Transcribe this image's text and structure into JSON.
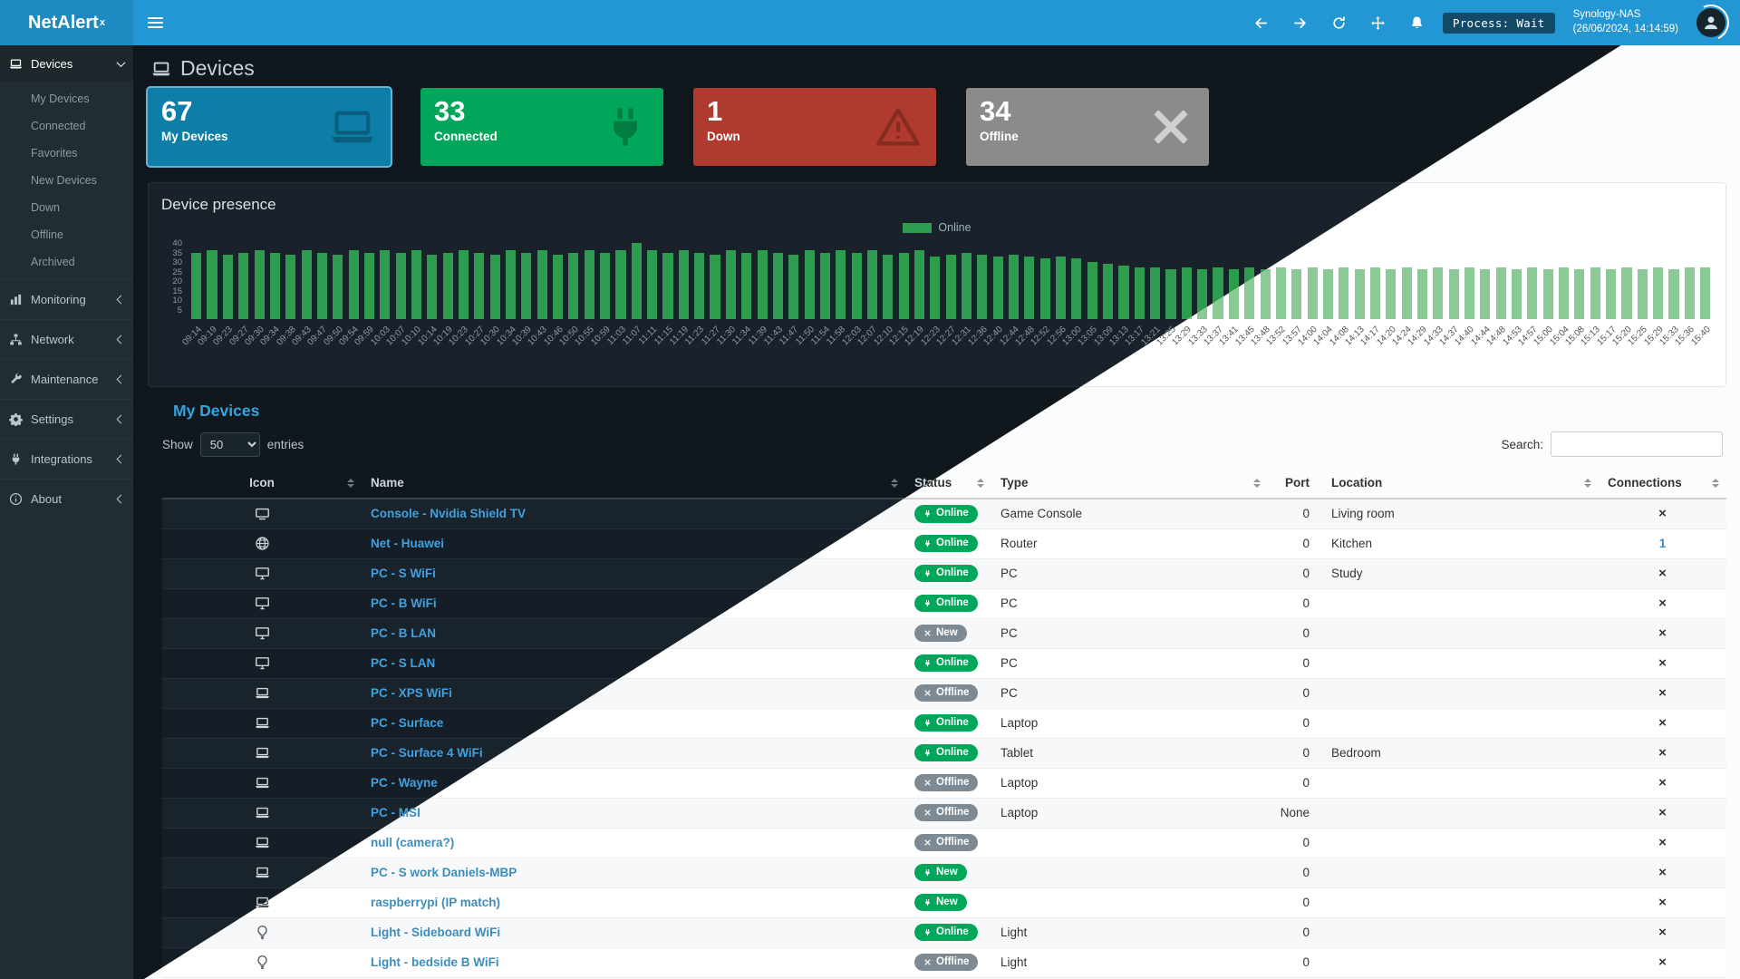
{
  "colors": {
    "navbar": "#2397d3",
    "logo": "#1d8ac1",
    "sidebar": "#222d32",
    "link": "#41a0dd",
    "link_light": "#3c8dbc",
    "title_blue": "#31a5e0",
    "badge_green": "#00a65a",
    "badge_gray": "#7d8a93",
    "bar_dark": "#2d9c4f",
    "bar_light": "#8bca96"
  },
  "app": {
    "brand": "NetAlert",
    "brand_sup": "x",
    "nav_icons": [
      "arrow-left-icon",
      "arrow-right-icon",
      "refresh-icon",
      "move-icon",
      "bell-icon"
    ],
    "process_label": "Process: Wait",
    "host": "Synology-NAS",
    "host_time": "(26/06/2024, 14:14:59)"
  },
  "sidebar": {
    "devices": {
      "label": "Devices",
      "icon": "laptop-icon"
    },
    "device_sub": [
      "My Devices",
      "Connected",
      "Favorites",
      "New Devices",
      "Down",
      "Offline",
      "Archived"
    ],
    "items": [
      {
        "label": "Monitoring",
        "icon": "chart-bar-icon"
      },
      {
        "label": "Network",
        "icon": "network-icon"
      },
      {
        "label": "Maintenance",
        "icon": "wrench-icon"
      },
      {
        "label": "Settings",
        "icon": "gear-icon"
      },
      {
        "label": "Integrations",
        "icon": "plug-icon"
      },
      {
        "label": "About",
        "icon": "info-icon"
      }
    ]
  },
  "page": {
    "title": "Devices"
  },
  "cards": [
    {
      "value": "67",
      "label": "My Devices",
      "color": "#0d7ea8",
      "icon": "laptop-icon",
      "selected": true
    },
    {
      "value": "33",
      "label": "Connected",
      "color": "#00a65a",
      "icon": "plug-icon",
      "selected": false
    },
    {
      "value": "1",
      "label": "Down",
      "color": "#b03a2e",
      "icon": "warning-icon",
      "selected": false
    },
    {
      "value": "34",
      "label": "Offline",
      "color": "#8b8b8b",
      "icon": "x-icon",
      "selected": false
    }
  ],
  "presence": {
    "title": "Device presence",
    "chart_data": {
      "type": "bar",
      "title": "Device presence",
      "series_name": "Online",
      "legend_position": "top",
      "ylim": [
        0,
        40
      ],
      "yticks": [
        40,
        35,
        30,
        25,
        20,
        15,
        10,
        5
      ],
      "x": [
        "09:14",
        "09:19",
        "09:23",
        "09:27",
        "09:30",
        "09:34",
        "09:38",
        "09:43",
        "09:47",
        "09:50",
        "09:54",
        "09:59",
        "10:03",
        "10:07",
        "10:10",
        "10:14",
        "10:19",
        "10:23",
        "10:27",
        "10:30",
        "10:34",
        "10:39",
        "10:43",
        "10:46",
        "10:50",
        "10:55",
        "10:59",
        "11:03",
        "11:07",
        "11:11",
        "11:15",
        "11:19",
        "11:23",
        "11:27",
        "11:30",
        "11:34",
        "11:39",
        "11:43",
        "11:47",
        "11:50",
        "11:54",
        "11:58",
        "12:03",
        "12:07",
        "12:10",
        "12:15",
        "12:19",
        "12:23",
        "12:27",
        "12:31",
        "12:36",
        "12:40",
        "12:44",
        "12:48",
        "12:52",
        "12:56",
        "13:00",
        "13:05",
        "13:09",
        "13:13",
        "13:17",
        "13:21",
        "13:25",
        "13:29",
        "13:33",
        "13:37",
        "13:41",
        "13:45",
        "13:48",
        "13:52",
        "13:57",
        "14:00",
        "14:04",
        "14:08",
        "14:13",
        "14:17",
        "14:20",
        "14:24",
        "14:29",
        "14:33",
        "14:37",
        "14:40",
        "14:44",
        "14:48",
        "14:53",
        "14:57",
        "15:00",
        "15:04",
        "15:08",
        "15:13",
        "15:17",
        "15:20",
        "15:25",
        "15:29",
        "15:33",
        "15:36",
        "15:40"
      ],
      "values": [
        35,
        36,
        34,
        35,
        36,
        35,
        34,
        36,
        35,
        34,
        36,
        35,
        36,
        35,
        36,
        34,
        35,
        36,
        35,
        34,
        36,
        35,
        36,
        34,
        35,
        36,
        35,
        36,
        40,
        36,
        35,
        36,
        35,
        34,
        36,
        35,
        36,
        35,
        34,
        36,
        35,
        36,
        35,
        36,
        34,
        35,
        36,
        33,
        34,
        35,
        34,
        33,
        34,
        33,
        32,
        33,
        32,
        30,
        29,
        28,
        27,
        27,
        26,
        27,
        26,
        27,
        26,
        27,
        26,
        27,
        26,
        27,
        26,
        27,
        26,
        27,
        26,
        27,
        26,
        27,
        26,
        27,
        26,
        27,
        26,
        27,
        26,
        27,
        26,
        27,
        26,
        27,
        26,
        27,
        26,
        27,
        27
      ]
    }
  },
  "devices_table": {
    "title": "My Devices",
    "show_label": "Show",
    "page_size": "50",
    "entries_label": "entries",
    "search_label": "Search:",
    "search_value": "",
    "columns": [
      "Icon",
      "Name",
      "Status",
      "Type",
      "Port",
      "Location",
      "Connections"
    ],
    "rows": [
      {
        "icon": "tv-icon",
        "name": "Console - Nvidia Shield TV",
        "status": "Online",
        "status_kind": "online",
        "status_icon": "plug-icon",
        "type": "Game Console",
        "port": "0",
        "location": "Living room",
        "connections": "×"
      },
      {
        "icon": "globe-icon",
        "name": "Net - Huawei",
        "status": "Online",
        "status_kind": "online",
        "status_icon": "plug-icon",
        "type": "Router",
        "port": "0",
        "location": "Kitchen",
        "connections": "1"
      },
      {
        "icon": "desktop-icon",
        "name": "PC - S WiFi",
        "status": "Online",
        "status_kind": "online",
        "status_icon": "plug-icon",
        "type": "PC",
        "port": "0",
        "location": "Study",
        "connections": "×"
      },
      {
        "icon": "desktop-icon",
        "name": "PC - B WiFi",
        "status": "Online",
        "status_kind": "online",
        "status_icon": "plug-icon",
        "type": "PC",
        "port": "0",
        "location": "",
        "connections": "×"
      },
      {
        "icon": "desktop-icon",
        "name": "PC - B LAN",
        "status": "New",
        "status_kind": "new-off",
        "status_icon": "x-icon",
        "type": "PC",
        "port": "0",
        "location": "",
        "connections": "×"
      },
      {
        "icon": "desktop-icon",
        "name": "PC - S LAN",
        "status": "Online",
        "status_kind": "online",
        "status_icon": "plug-icon",
        "type": "PC",
        "port": "0",
        "location": "",
        "connections": "×"
      },
      {
        "icon": "laptop-icon",
        "name": "PC - XPS WiFi",
        "status": "Offline",
        "status_kind": "offline",
        "status_icon": "x-icon",
        "type": "PC",
        "port": "0",
        "location": "",
        "connections": "×"
      },
      {
        "icon": "laptop-icon",
        "name": "PC - Surface",
        "status": "Online",
        "status_kind": "online",
        "status_icon": "plug-icon",
        "type": "Laptop",
        "port": "0",
        "location": "",
        "connections": "×"
      },
      {
        "icon": "laptop-icon",
        "name": "PC - Surface 4 WiFi",
        "status": "Online",
        "status_kind": "online",
        "status_icon": "plug-icon",
        "type": "Tablet",
        "port": "0",
        "location": "Bedroom",
        "connections": "×"
      },
      {
        "icon": "laptop-icon",
        "name": "PC - Wayne",
        "status": "Offline",
        "status_kind": "offline",
        "status_icon": "x-icon",
        "type": "Laptop",
        "port": "0",
        "location": "",
        "connections": "×"
      },
      {
        "icon": "laptop-icon",
        "name": "PC - MSI",
        "status": "Offline",
        "status_kind": "offline",
        "status_icon": "x-icon",
        "type": "Laptop",
        "port": "None",
        "location": "",
        "connections": "×"
      },
      {
        "icon": "laptop-icon",
        "name": "null (camera?)",
        "status": "Offline",
        "status_kind": "offline",
        "status_icon": "x-icon",
        "type": "",
        "port": "0",
        "location": "",
        "connections": "×"
      },
      {
        "icon": "laptop-icon",
        "name": "PC - S work Daniels-MBP",
        "status": "New",
        "status_kind": "new-on",
        "status_icon": "plug-icon",
        "type": "",
        "port": "0",
        "location": "",
        "connections": "×"
      },
      {
        "icon": "laptop-icon",
        "name": "raspberrypi (IP match)",
        "status": "New",
        "status_kind": "new-on",
        "status_icon": "plug-icon",
        "type": "",
        "port": "0",
        "location": "",
        "connections": "×"
      },
      {
        "icon": "lightbulb-icon",
        "name": "Light - Sideboard WiFi",
        "status": "Online",
        "status_kind": "online",
        "status_icon": "plug-icon",
        "type": "Light",
        "port": "0",
        "location": "",
        "connections": "×"
      },
      {
        "icon": "lightbulb-icon",
        "name": "Light - bedside B WiFi",
        "status": "Offline",
        "status_kind": "offline",
        "status_icon": "x-icon",
        "type": "Light",
        "port": "0",
        "location": "",
        "connections": "×"
      }
    ]
  }
}
